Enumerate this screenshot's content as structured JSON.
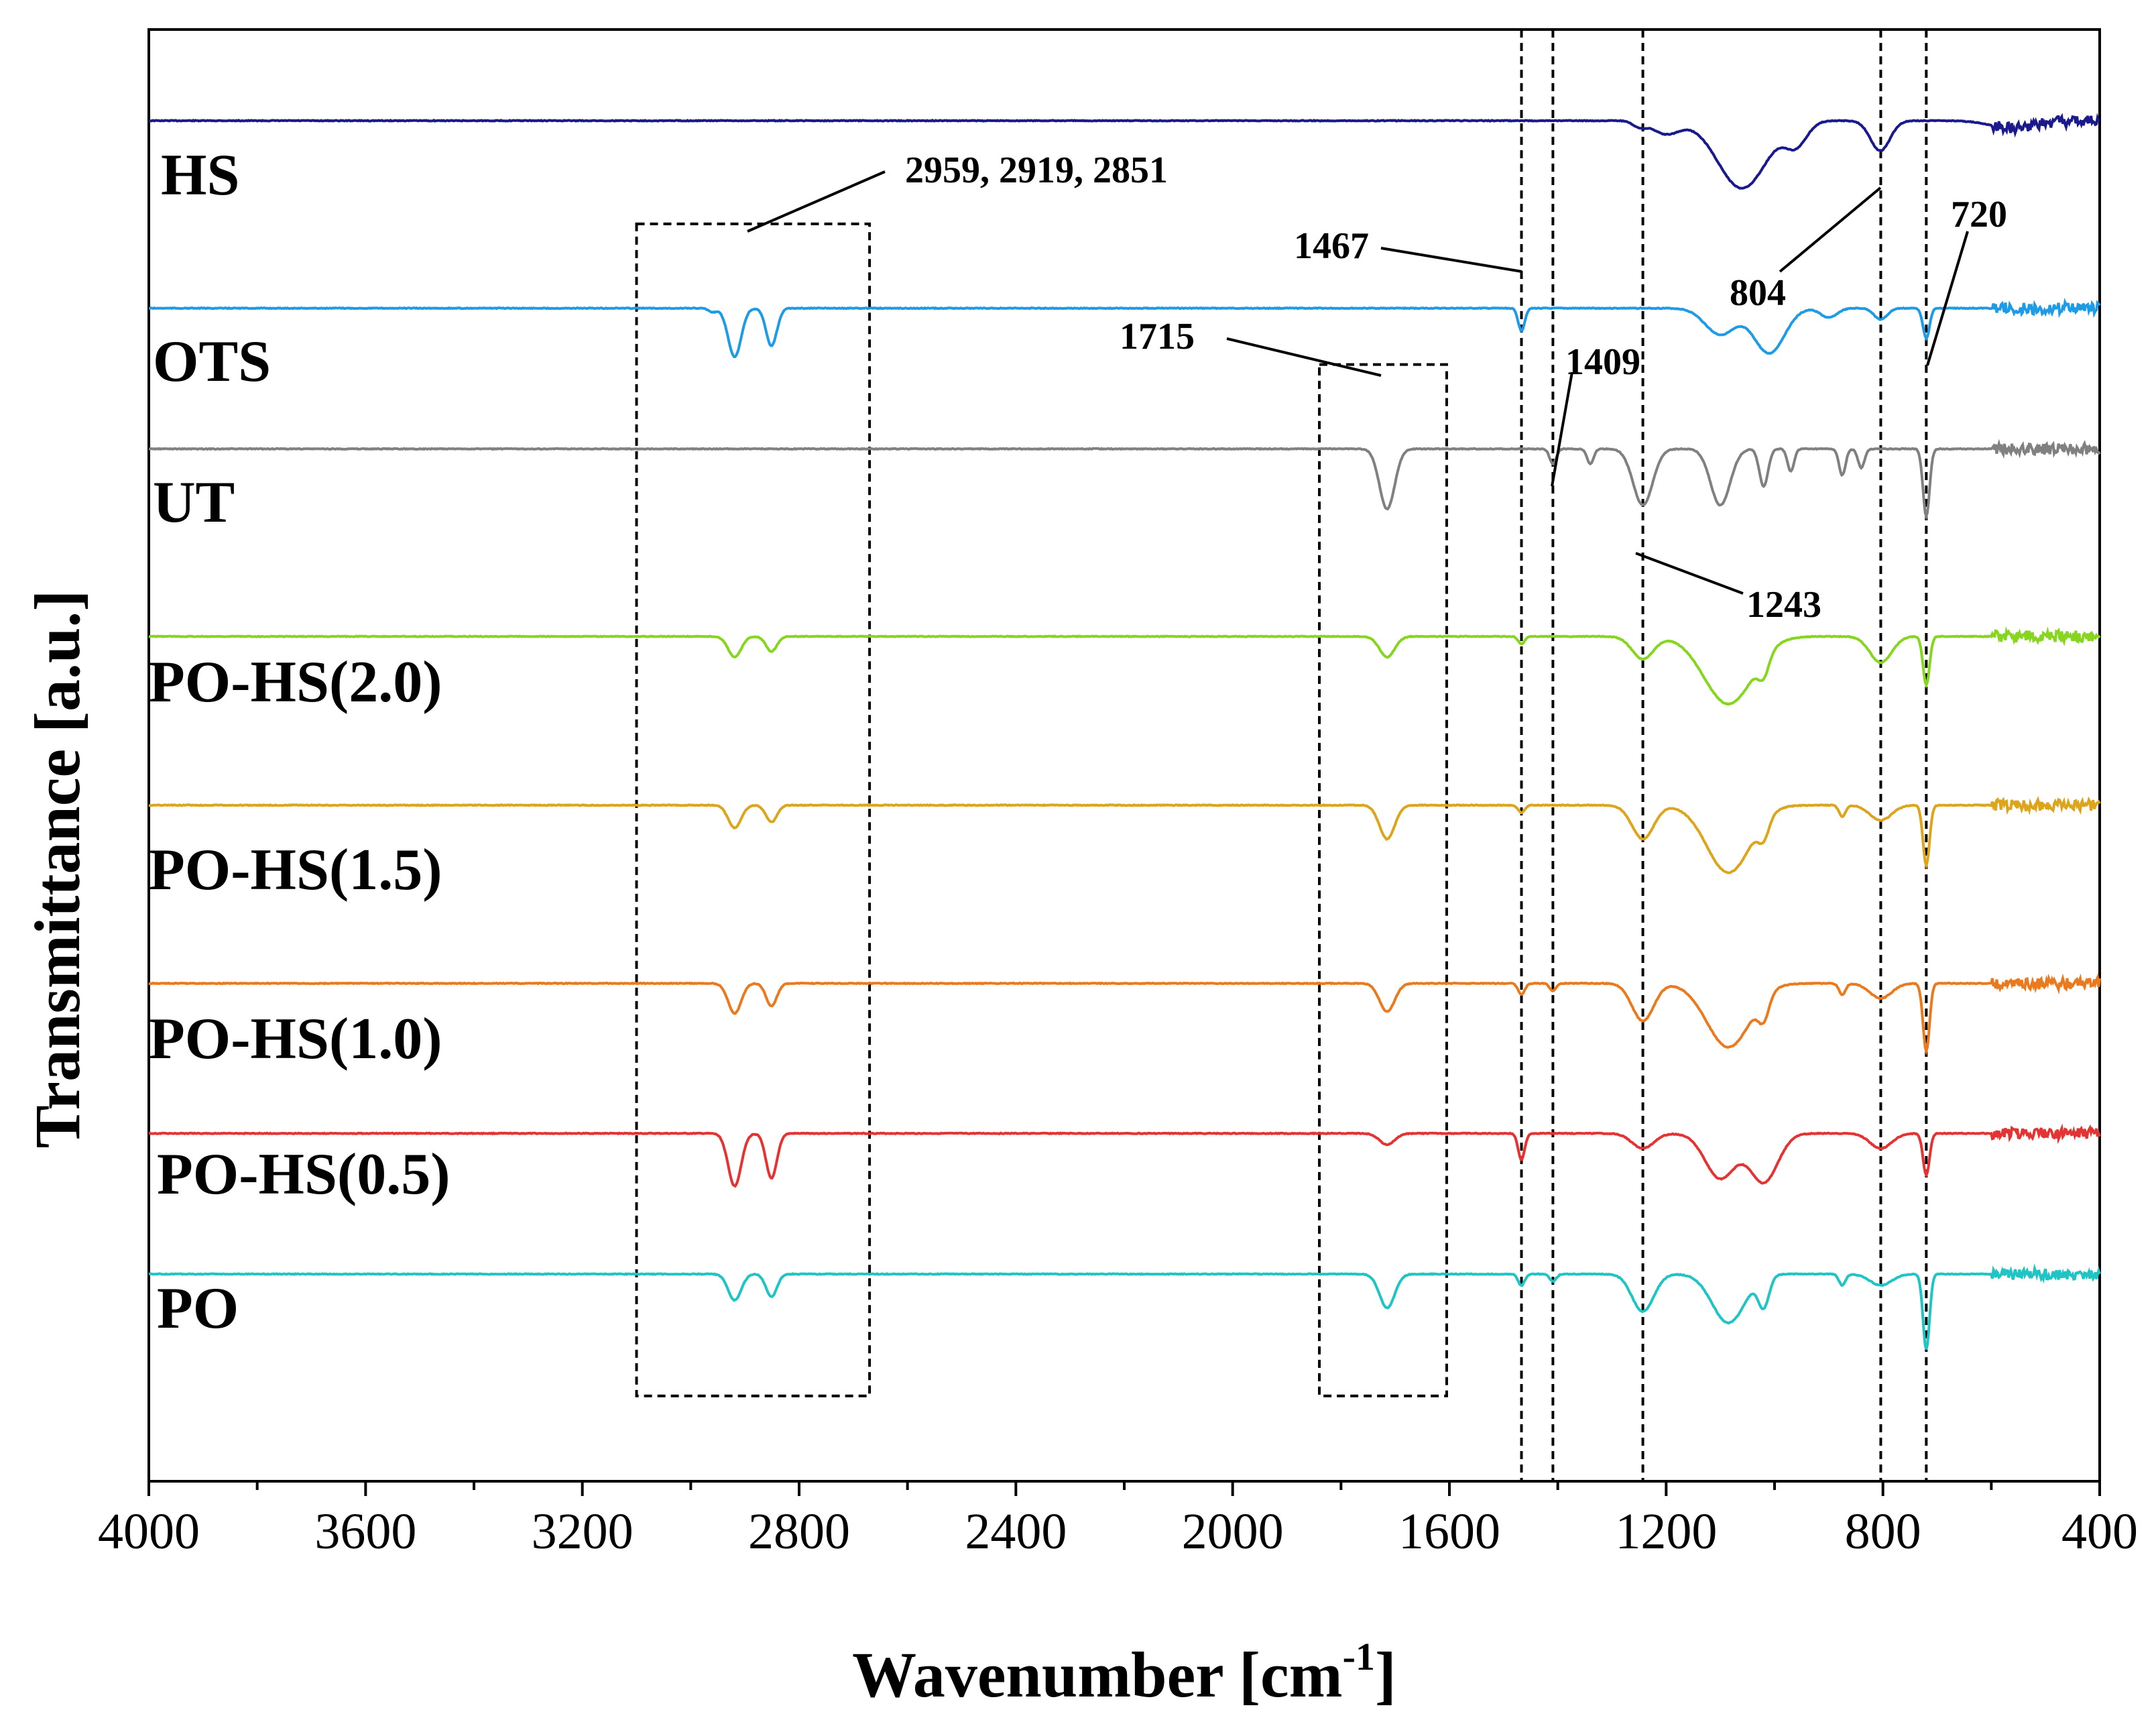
{
  "chart_data": {
    "type": "line",
    "title": "",
    "xlabel": "Wavenumber [cm",
    "xlabel_superscript": "-1",
    "xlabel_suffix": "]",
    "ylabel": "Transmittance [a.u.]",
    "xlim": [
      4000,
      400
    ],
    "x_reversed": true,
    "x_ticks": [
      4000,
      3600,
      3200,
      2800,
      2400,
      2000,
      1600,
      1200,
      800,
      400
    ],
    "x_tick_labels": [
      "4000",
      "3600",
      "3200",
      "2800",
      "2400",
      "2000",
      "1600",
      "1200",
      "800",
      "400"
    ],
    "y_ticks_shown": false,
    "grid": false,
    "series": [
      {
        "name": "HS",
        "color": "#1a1a8c",
        "baseline": 0.0,
        "peaks": [
          [
            1250,
            0.03,
            12
          ],
          [
            1200,
            0.07,
            25
          ],
          [
            1060,
            0.36,
            45
          ],
          [
            960,
            0.12,
            20
          ],
          [
            805,
            0.16,
            18
          ],
          [
            560,
            0.04,
            40
          ]
        ]
      },
      {
        "name": "OTS",
        "color": "#1e9be6",
        "baseline": 1.0,
        "peaks": [
          [
            2959,
            0.02,
            8
          ],
          [
            2919,
            0.26,
            12
          ],
          [
            2851,
            0.2,
            10
          ],
          [
            1467,
            0.12,
            6
          ],
          [
            1100,
            0.14,
            28
          ],
          [
            1010,
            0.24,
            28
          ],
          [
            720,
            0.16,
            6
          ],
          [
            804,
            0.06,
            12
          ],
          [
            900,
            0.05,
            15
          ]
        ]
      },
      {
        "name": "UT",
        "color": "#808080",
        "baseline": 1.75,
        "peaks": [
          [
            1715,
            0.32,
            14
          ],
          [
            1409,
            0.08,
            6
          ],
          [
            1340,
            0.08,
            6
          ],
          [
            1243,
            0.3,
            18
          ],
          [
            1100,
            0.3,
            18
          ],
          [
            1020,
            0.2,
            8
          ],
          [
            970,
            0.12,
            6
          ],
          [
            875,
            0.14,
            6
          ],
          [
            840,
            0.1,
            6
          ],
          [
            720,
            0.36,
            6
          ]
        ]
      },
      {
        "name": "PO-HS(2.0)",
        "color": "#86d61f",
        "baseline": 2.75,
        "peaks": [
          [
            2919,
            0.11,
            12
          ],
          [
            2851,
            0.08,
            10
          ],
          [
            1715,
            0.11,
            14
          ],
          [
            1467,
            0.04,
            6
          ],
          [
            1243,
            0.12,
            20
          ],
          [
            1085,
            0.36,
            45
          ],
          [
            1020,
            0.1,
            10
          ],
          [
            804,
            0.14,
            20
          ],
          [
            720,
            0.26,
            6
          ]
        ]
      },
      {
        "name": "PO-HS(1.5)",
        "color": "#dca51b",
        "baseline": 3.65,
        "peaks": [
          [
            2919,
            0.12,
            12
          ],
          [
            2851,
            0.09,
            10
          ],
          [
            1715,
            0.18,
            14
          ],
          [
            1467,
            0.04,
            6
          ],
          [
            1243,
            0.18,
            20
          ],
          [
            1085,
            0.36,
            40
          ],
          [
            1020,
            0.1,
            10
          ],
          [
            875,
            0.06,
            6
          ],
          [
            804,
            0.08,
            20
          ],
          [
            720,
            0.32,
            6
          ]
        ]
      },
      {
        "name": "PO-HS(1.0)",
        "color": "#eb7a1e",
        "baseline": 4.6,
        "peaks": [
          [
            2919,
            0.16,
            12
          ],
          [
            2851,
            0.12,
            10
          ],
          [
            1715,
            0.15,
            14
          ],
          [
            1467,
            0.06,
            6
          ],
          [
            1409,
            0.04,
            6
          ],
          [
            1243,
            0.2,
            20
          ],
          [
            1085,
            0.34,
            40
          ],
          [
            1020,
            0.12,
            10
          ],
          [
            875,
            0.06,
            6
          ],
          [
            804,
            0.08,
            20
          ],
          [
            720,
            0.36,
            6
          ]
        ]
      },
      {
        "name": "PO-HS(0.5)",
        "color": "#e53232",
        "baseline": 5.4,
        "peaks": [
          [
            2919,
            0.28,
            12
          ],
          [
            2851,
            0.24,
            10
          ],
          [
            1715,
            0.06,
            14
          ],
          [
            1467,
            0.14,
            6
          ],
          [
            1243,
            0.08,
            20
          ],
          [
            1100,
            0.24,
            28
          ],
          [
            1020,
            0.26,
            26
          ],
          [
            804,
            0.08,
            20
          ],
          [
            720,
            0.22,
            6
          ]
        ]
      },
      {
        "name": "PO",
        "color": "#1fc4c4",
        "baseline": 6.15,
        "peaks": [
          [
            2919,
            0.14,
            12
          ],
          [
            2851,
            0.12,
            10
          ],
          [
            1715,
            0.18,
            14
          ],
          [
            1467,
            0.06,
            6
          ],
          [
            1409,
            0.04,
            6
          ],
          [
            1243,
            0.2,
            20
          ],
          [
            1085,
            0.26,
            30
          ],
          [
            1020,
            0.16,
            10
          ],
          [
            875,
            0.06,
            6
          ],
          [
            804,
            0.06,
            20
          ],
          [
            720,
            0.4,
            6
          ]
        ]
      }
    ],
    "y_offset_range": [
      -0.2,
      7.15
    ],
    "vertical_markers": [
      1467,
      1409,
      1243,
      804,
      720
    ],
    "region_boxes": [
      {
        "x_range": [
          3100,
          2670
        ],
        "y_range": [
          0.55,
          6.8
        ]
      },
      {
        "x_range": [
          1840,
          1605
        ],
        "y_range": [
          1.3,
          6.8
        ]
      }
    ],
    "annotations": [
      {
        "text": "2959, 2919, 2851",
        "target_x": 2900
      },
      {
        "text": "1467",
        "target_x": 1467
      },
      {
        "text": "1715",
        "target_x": 1715
      },
      {
        "text": "1409",
        "target_x": 1409
      },
      {
        "text": "1243",
        "target_x": 1243
      },
      {
        "text": "804",
        "target_x": 804
      },
      {
        "text": "720",
        "target_x": 720
      }
    ]
  }
}
